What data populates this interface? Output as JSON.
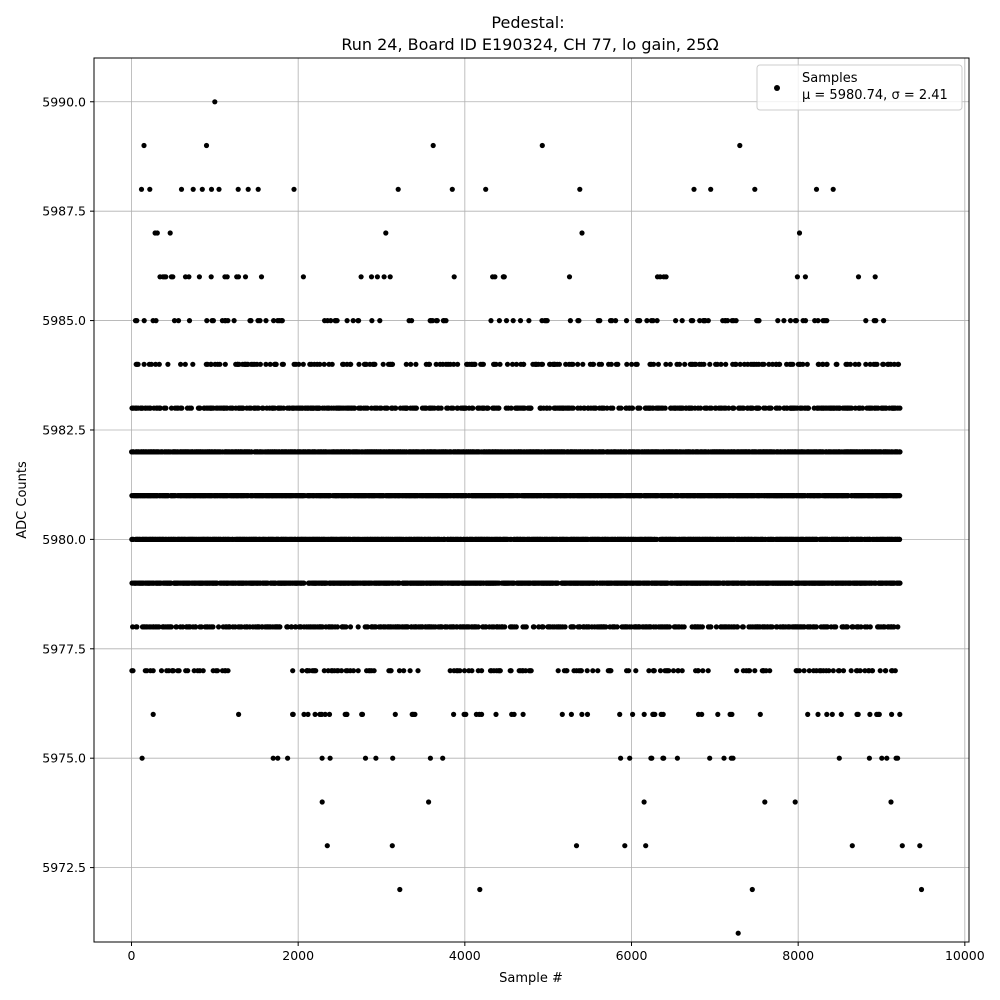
{
  "chart_data": {
    "type": "scatter",
    "title_line1": "Pedestal:",
    "title_line2": "Run 24, Board ID E190324, CH 77, lo gain, 25Ω",
    "xlabel": "Sample #",
    "ylabel": "ADC Counts",
    "xlim": [
      -450,
      10050
    ],
    "ylim": [
      5970.8,
      5991.0
    ],
    "xticks": [
      0,
      2000,
      4000,
      6000,
      8000,
      10000
    ],
    "yticks": [
      5972.5,
      5975.0,
      5977.5,
      5980.0,
      5982.5,
      5985.0,
      5987.5,
      5990.0
    ],
    "xtick_labels": [
      "0",
      "2000",
      "4000",
      "6000",
      "8000",
      "10000"
    ],
    "ytick_labels": [
      "5972.5",
      "5975.0",
      "5977.5",
      "5980.0",
      "5982.5",
      "5985.0",
      "5987.5",
      "5990.0"
    ],
    "grid": true,
    "legend_placement": "top-right",
    "marker_color": "#000000",
    "n_samples": 9600,
    "series": [
      {
        "name": "Samples",
        "stats_label": "μ = 5980.74, σ = 2.41",
        "x": [
          1000,
          150,
          900,
          3620,
          4930,
          7300,
          120,
          220,
          600,
          740,
          850,
          960,
          1050,
          1280,
          1400,
          1520,
          1950,
          3200,
          3850,
          4250,
          5380,
          6750,
          6950,
          7480,
          8220,
          8420,
          7280,
          3220,
          4180,
          7450,
          9480,
          2350,
          3130,
          5340,
          5920,
          6170,
          8650,
          9250,
          9460
        ],
        "y": [
          5990,
          5989,
          5989,
          5989,
          5989,
          5989,
          5988,
          5988,
          5988,
          5988,
          5988,
          5988,
          5988,
          5988,
          5988,
          5988,
          5988,
          5988,
          5988,
          5988,
          5988,
          5988,
          5988,
          5988,
          5988,
          5988,
          5971,
          5972,
          5972,
          5972,
          5972,
          5973,
          5973,
          5973,
          5973,
          5973,
          5973,
          5973,
          5973
        ]
      }
    ],
    "band_levels": [
      {
        "y": 5987,
        "segments": [
          [
            0.02,
            0.06
          ],
          [
            0.3,
            0.34
          ],
          [
            0.55,
            0.57
          ],
          [
            0.82,
            0.84
          ]
        ],
        "density": 0.035
      },
      {
        "y": 5986,
        "segments": [
          [
            0.0,
            0.17
          ],
          [
            0.2,
            0.22
          ],
          [
            0.28,
            0.33
          ],
          [
            0.37,
            0.41
          ],
          [
            0.44,
            0.47
          ],
          [
            0.52,
            0.55
          ],
          [
            0.65,
            0.68
          ],
          [
            0.8,
            0.87
          ],
          [
            0.9,
            0.93
          ]
        ],
        "density": 0.06
      },
      {
        "y": 5985,
        "segments": [
          [
            0.0,
            0.19
          ],
          [
            0.23,
            0.35
          ],
          [
            0.37,
            0.41
          ],
          [
            0.44,
            0.56
          ],
          [
            0.58,
            0.66
          ],
          [
            0.68,
            0.76
          ],
          [
            0.78,
            0.88
          ],
          [
            0.91,
            0.94
          ]
        ],
        "density": 0.12
      },
      {
        "y": 5984,
        "segments": [
          [
            0.0,
            0.96
          ]
        ],
        "density": 0.2
      },
      {
        "y": 5983,
        "segments": [
          [
            0.0,
            0.96
          ]
        ],
        "density": 0.4
      },
      {
        "y": 5982,
        "segments": [
          [
            0.0,
            0.96
          ]
        ],
        "density": 0.8
      },
      {
        "y": 5981,
        "segments": [
          [
            0.0,
            0.96
          ]
        ],
        "density": 0.85
      },
      {
        "y": 5980,
        "segments": [
          [
            0.0,
            0.96
          ]
        ],
        "density": 0.85
      },
      {
        "y": 5979,
        "segments": [
          [
            0.0,
            0.96
          ]
        ],
        "density": 0.75
      },
      {
        "y": 5978,
        "segments": [
          [
            0.0,
            0.96
          ]
        ],
        "density": 0.4
      },
      {
        "y": 5977,
        "segments": [
          [
            0.0,
            0.12
          ],
          [
            0.19,
            0.36
          ],
          [
            0.38,
            0.5
          ],
          [
            0.53,
            0.8
          ],
          [
            0.83,
            0.96
          ]
        ],
        "density": 0.18
      },
      {
        "y": 5976,
        "segments": [
          [
            0.02,
            0.04
          ],
          [
            0.13,
            0.17
          ],
          [
            0.2,
            0.3
          ],
          [
            0.32,
            0.36
          ],
          [
            0.4,
            0.5
          ],
          [
            0.53,
            0.58
          ],
          [
            0.61,
            0.68
          ],
          [
            0.7,
            0.79
          ],
          [
            0.84,
            0.96
          ]
        ],
        "density": 0.09
      },
      {
        "y": 5975,
        "segments": [
          [
            0.01,
            0.03
          ],
          [
            0.17,
            0.26
          ],
          [
            0.28,
            0.34
          ],
          [
            0.37,
            0.4
          ],
          [
            0.47,
            0.49
          ],
          [
            0.54,
            0.56
          ],
          [
            0.6,
            0.65
          ],
          [
            0.66,
            0.69
          ],
          [
            0.7,
            0.76
          ],
          [
            0.86,
            0.96
          ]
        ],
        "density": 0.05
      },
      {
        "y": 5974,
        "segments": [
          [
            0.21,
            0.24
          ],
          [
            0.29,
            0.31
          ],
          [
            0.37,
            0.39
          ],
          [
            0.49,
            0.51
          ],
          [
            0.57,
            0.6
          ],
          [
            0.62,
            0.66
          ],
          [
            0.75,
            0.77
          ],
          [
            0.79,
            0.83
          ],
          [
            0.88,
            0.89
          ],
          [
            0.93,
            0.96
          ]
        ],
        "density": 0.015
      }
    ]
  }
}
